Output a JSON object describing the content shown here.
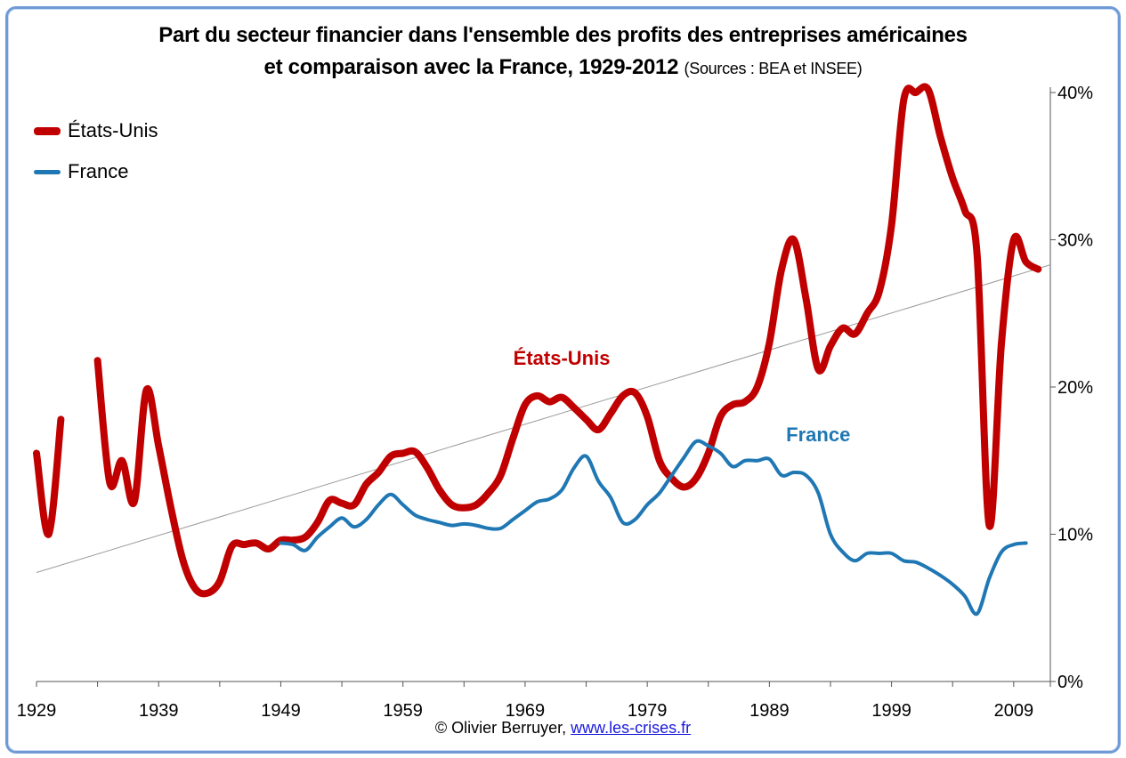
{
  "chart_data": {
    "type": "line",
    "title_line1": "Part du secteur financier dans l'ensemble des profits  des entreprises américaines",
    "title_line2": "et comparaison avec la France, 1929-2012",
    "sources": "(Sources : BEA et INSEE)",
    "xlim": [
      1929,
      2012
    ],
    "ylim": [
      0,
      0.4
    ],
    "x_ticks": [
      1929,
      1939,
      1949,
      1959,
      1969,
      1979,
      1989,
      1999,
      2009
    ],
    "y_ticks": [
      {
        "value": 0.0,
        "label": "0%"
      },
      {
        "value": 0.1,
        "label": "10%"
      },
      {
        "value": 0.2,
        "label": "20%"
      },
      {
        "value": 0.3,
        "label": "30%"
      },
      {
        "value": 0.4,
        "label": "40%"
      }
    ],
    "y_axis_side": "right",
    "grid": false,
    "legend_placement": "top-left",
    "series": [
      {
        "name": "États-Unis",
        "color": "#c00000",
        "segments": [
          [
            [
              1929,
              0.155
            ],
            [
              1930,
              0.1
            ],
            [
              1931,
              0.178
            ]
          ],
          [
            [
              1934,
              0.218
            ],
            [
              1935,
              0.135
            ],
            [
              1936,
              0.15
            ],
            [
              1937,
              0.122
            ],
            [
              1938,
              0.198
            ],
            [
              1939,
              0.16
            ],
            [
              1940,
              0.118
            ],
            [
              1941,
              0.082
            ],
            [
              1942,
              0.063
            ],
            [
              1943,
              0.06
            ],
            [
              1944,
              0.068
            ],
            [
              1945,
              0.092
            ],
            [
              1946,
              0.093
            ],
            [
              1947,
              0.094
            ],
            [
              1948,
              0.09
            ],
            [
              1949,
              0.096
            ],
            [
              1950,
              0.096
            ],
            [
              1951,
              0.098
            ],
            [
              1952,
              0.108
            ],
            [
              1953,
              0.123
            ],
            [
              1954,
              0.121
            ],
            [
              1955,
              0.12
            ],
            [
              1956,
              0.134
            ],
            [
              1957,
              0.142
            ],
            [
              1958,
              0.153
            ],
            [
              1959,
              0.155
            ],
            [
              1960,
              0.156
            ],
            [
              1961,
              0.145
            ],
            [
              1962,
              0.13
            ],
            [
              1963,
              0.12
            ],
            [
              1964,
              0.118
            ],
            [
              1965,
              0.12
            ],
            [
              1966,
              0.128
            ],
            [
              1967,
              0.14
            ],
            [
              1968,
              0.165
            ],
            [
              1969,
              0.188
            ],
            [
              1970,
              0.194
            ],
            [
              1971,
              0.19
            ],
            [
              1972,
              0.193
            ],
            [
              1973,
              0.186
            ],
            [
              1974,
              0.178
            ],
            [
              1975,
              0.171
            ],
            [
              1976,
              0.182
            ],
            [
              1977,
              0.194
            ],
            [
              1978,
              0.196
            ],
            [
              1979,
              0.18
            ],
            [
              1980,
              0.15
            ],
            [
              1981,
              0.138
            ],
            [
              1982,
              0.132
            ],
            [
              1983,
              0.138
            ],
            [
              1984,
              0.155
            ],
            [
              1985,
              0.18
            ],
            [
              1986,
              0.188
            ],
            [
              1987,
              0.19
            ],
            [
              1988,
              0.2
            ],
            [
              1989,
              0.23
            ],
            [
              1990,
              0.28
            ],
            [
              1991,
              0.3
            ],
            [
              1992,
              0.26
            ],
            [
              1993,
              0.212
            ],
            [
              1994,
              0.228
            ],
            [
              1995,
              0.24
            ],
            [
              1996,
              0.236
            ],
            [
              1997,
              0.25
            ],
            [
              1998,
              0.265
            ],
            [
              1999,
              0.31
            ],
            [
              2000,
              0.395
            ],
            [
              2001,
              0.4
            ],
            [
              2002,
              0.402
            ],
            [
              2003,
              0.37
            ],
            [
              2004,
              0.342
            ],
            [
              2005,
              0.32
            ],
            [
              2006,
              0.29
            ],
            [
              2007,
              0.106
            ],
            [
              2008,
              0.23
            ],
            [
              2009,
              0.3
            ],
            [
              2010,
              0.285
            ],
            [
              2011,
              0.28
            ]
          ]
        ]
      },
      {
        "name": "France",
        "color": "#1f77b4",
        "segments": [
          [
            [
              1949,
              0.094
            ],
            [
              1950,
              0.093
            ],
            [
              1951,
              0.089
            ],
            [
              1952,
              0.098
            ],
            [
              1953,
              0.105
            ],
            [
              1954,
              0.111
            ],
            [
              1955,
              0.105
            ],
            [
              1956,
              0.11
            ],
            [
              1957,
              0.12
            ],
            [
              1958,
              0.127
            ],
            [
              1959,
              0.12
            ],
            [
              1960,
              0.113
            ],
            [
              1961,
              0.11
            ],
            [
              1962,
              0.108
            ],
            [
              1963,
              0.106
            ],
            [
              1964,
              0.107
            ],
            [
              1965,
              0.106
            ],
            [
              1966,
              0.104
            ],
            [
              1967,
              0.104
            ],
            [
              1968,
              0.11
            ],
            [
              1969,
              0.116
            ],
            [
              1970,
              0.122
            ],
            [
              1971,
              0.124
            ],
            [
              1972,
              0.13
            ],
            [
              1973,
              0.145
            ],
            [
              1974,
              0.153
            ],
            [
              1975,
              0.136
            ],
            [
              1976,
              0.125
            ],
            [
              1977,
              0.108
            ],
            [
              1978,
              0.11
            ],
            [
              1979,
              0.12
            ],
            [
              1980,
              0.128
            ],
            [
              1981,
              0.14
            ],
            [
              1982,
              0.152
            ],
            [
              1983,
              0.163
            ],
            [
              1984,
              0.16
            ],
            [
              1985,
              0.155
            ],
            [
              1986,
              0.146
            ],
            [
              1987,
              0.15
            ],
            [
              1988,
              0.15
            ],
            [
              1989,
              0.151
            ],
            [
              1990,
              0.14
            ],
            [
              1991,
              0.142
            ],
            [
              1992,
              0.14
            ],
            [
              1993,
              0.128
            ],
            [
              1994,
              0.1
            ],
            [
              1995,
              0.088
            ],
            [
              1996,
              0.082
            ],
            [
              1997,
              0.087
            ],
            [
              1998,
              0.087
            ],
            [
              1999,
              0.087
            ],
            [
              2000,
              0.082
            ],
            [
              2001,
              0.081
            ],
            [
              2002,
              0.077
            ],
            [
              2003,
              0.072
            ],
            [
              2004,
              0.066
            ],
            [
              2005,
              0.058
            ],
            [
              2006,
              0.046
            ],
            [
              2007,
              0.07
            ],
            [
              2008,
              0.088
            ],
            [
              2009,
              0.093
            ],
            [
              2010,
              0.094
            ]
          ]
        ]
      }
    ],
    "trend_line": {
      "color": "#9a9a9a",
      "points": [
        [
          1929,
          0.074
        ],
        [
          2012,
          0.283
        ]
      ]
    },
    "annotations": [
      {
        "text": "États-Unis",
        "series": "États-Unis",
        "x": 1972,
        "y": 0.215
      },
      {
        "text": "France",
        "series": "France",
        "x": 1993,
        "y": 0.163
      }
    ]
  },
  "legend": {
    "items": [
      {
        "label": "États-Unis",
        "color": "#c00000"
      },
      {
        "label": "France",
        "color": "#1f77b4"
      }
    ]
  },
  "footer": {
    "copyright": "© Olivier Berruyer,",
    "link": "www.les-crises.fr"
  }
}
